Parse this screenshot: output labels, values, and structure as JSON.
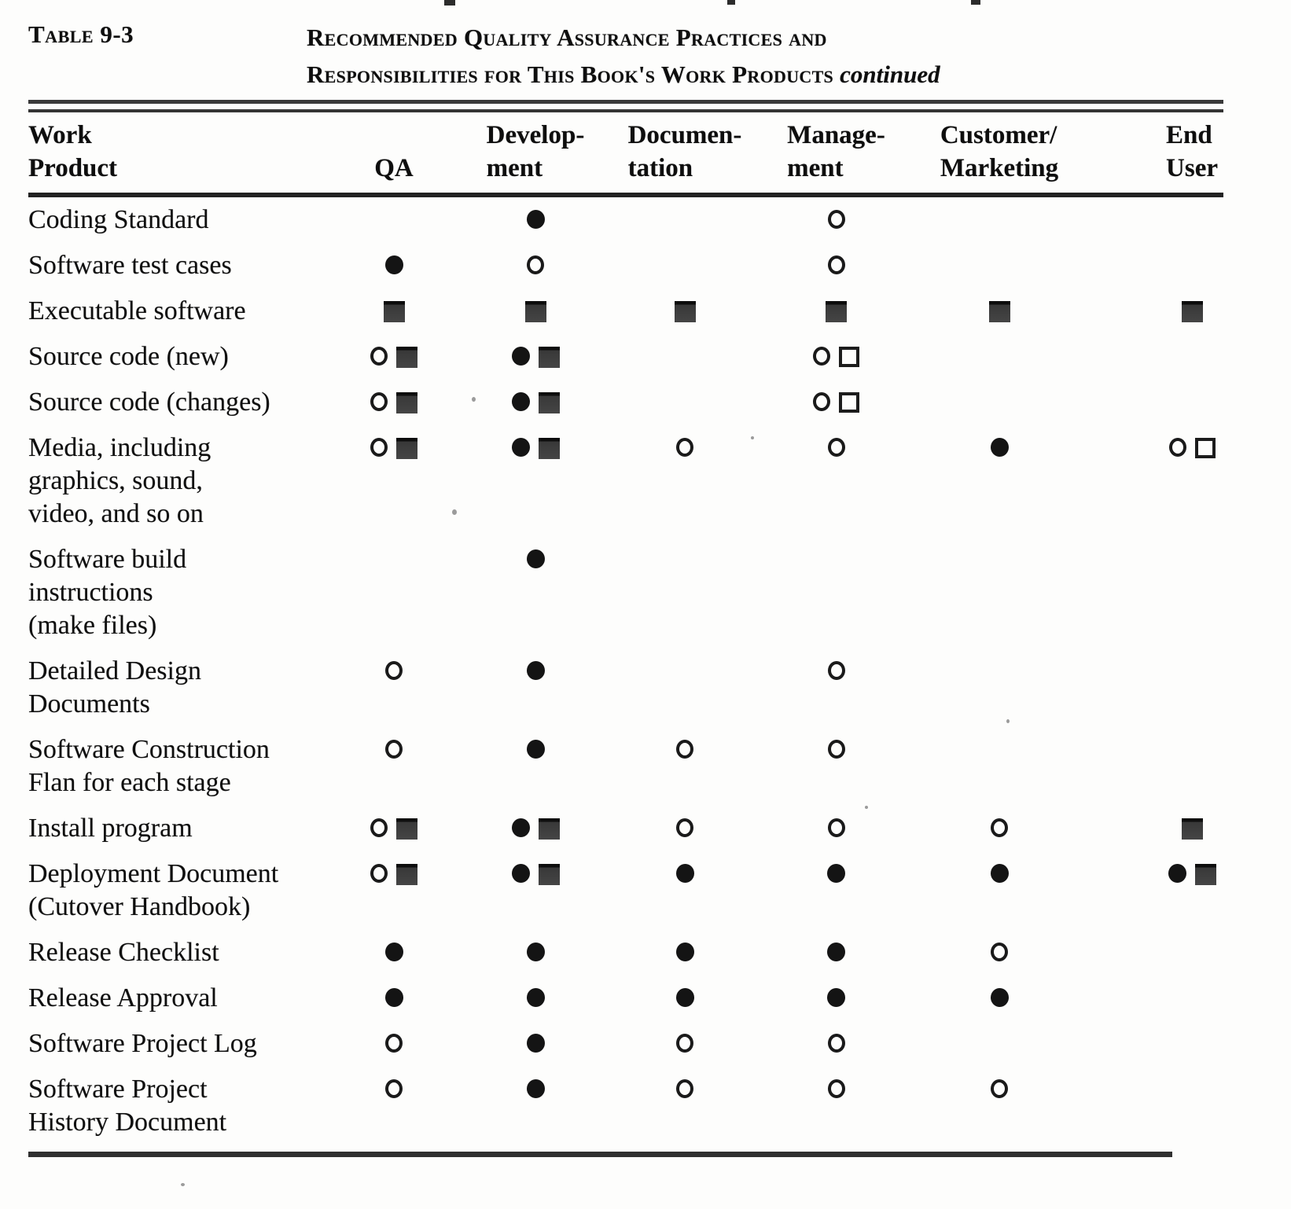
{
  "document": {
    "table_label": "Table 9-3",
    "title_line1": "Recommended Quality Assurance Practices and",
    "title_line2": "Responsibilities for This Book's Work Products",
    "title_suffix": "continued"
  },
  "table": {
    "columns": [
      {
        "id": "work-product",
        "lines": [
          "Work",
          "Product"
        ]
      },
      {
        "id": "qa",
        "lines": [
          "QA"
        ]
      },
      {
        "id": "development",
        "lines": [
          "Develop-",
          "ment"
        ]
      },
      {
        "id": "documentation",
        "lines": [
          "Documen-",
          "tation"
        ]
      },
      {
        "id": "management",
        "lines": [
          "Manage-",
          "ment"
        ]
      },
      {
        "id": "customer-marketing",
        "lines": [
          "Customer/",
          "Marketing"
        ]
      },
      {
        "id": "end-user",
        "lines": [
          "End",
          "User"
        ]
      }
    ],
    "symbol_legend": {
      "filled-circle": "solid dot",
      "open-circle": "open dot",
      "filled-square": "solid square",
      "open-square": "open square"
    },
    "rows": [
      {
        "product_lines": [
          "Coding Standard"
        ],
        "cells": {
          "qa": [],
          "development": [
            "filled-circle"
          ],
          "documentation": [],
          "management": [
            "open-circle"
          ],
          "customer-marketing": [],
          "end-user": []
        }
      },
      {
        "product_lines": [
          "Software test cases"
        ],
        "cells": {
          "qa": [
            "filled-circle"
          ],
          "development": [
            "open-circle"
          ],
          "documentation": [],
          "management": [
            "open-circle"
          ],
          "customer-marketing": [],
          "end-user": []
        }
      },
      {
        "product_lines": [
          "Executable software"
        ],
        "cells": {
          "qa": [
            "filled-square"
          ],
          "development": [
            "filled-square"
          ],
          "documentation": [
            "filled-square"
          ],
          "management": [
            "filled-square"
          ],
          "customer-marketing": [
            "filled-square"
          ],
          "end-user": [
            "filled-square"
          ]
        }
      },
      {
        "product_lines": [
          "Source code (new)"
        ],
        "cells": {
          "qa": [
            "open-circle",
            "filled-square"
          ],
          "development": [
            "filled-circle",
            "filled-square"
          ],
          "documentation": [],
          "management": [
            "open-circle",
            "open-square"
          ],
          "customer-marketing": [],
          "end-user": []
        }
      },
      {
        "product_lines": [
          "Source code (changes)"
        ],
        "cells": {
          "qa": [
            "open-circle",
            "filled-square"
          ],
          "development": [
            "filled-circle",
            "filled-square"
          ],
          "documentation": [],
          "management": [
            "open-circle",
            "open-square"
          ],
          "customer-marketing": [],
          "end-user": []
        }
      },
      {
        "product_lines": [
          "Media, including",
          "graphics, sound,",
          "video, and so on"
        ],
        "cells": {
          "qa": [
            "open-circle",
            "filled-square"
          ],
          "development": [
            "filled-circle",
            "filled-square"
          ],
          "documentation": [
            "open-circle"
          ],
          "management": [
            "open-circle"
          ],
          "customer-marketing": [
            "filled-circle"
          ],
          "end-user": [
            "open-circle",
            "open-square"
          ]
        }
      },
      {
        "product_lines": [
          "Software build",
          "instructions",
          "(make files)"
        ],
        "cells": {
          "qa": [],
          "development": [
            "filled-circle"
          ],
          "documentation": [],
          "management": [],
          "customer-marketing": [],
          "end-user": []
        }
      },
      {
        "product_lines": [
          "Detailed Design",
          "Documents"
        ],
        "cells": {
          "qa": [
            "open-circle"
          ],
          "development": [
            "filled-circle"
          ],
          "documentation": [],
          "management": [
            "open-circle"
          ],
          "customer-marketing": [],
          "end-user": []
        }
      },
      {
        "product_lines": [
          "Software Construction",
          "Flan for each stage"
        ],
        "cells": {
          "qa": [
            "open-circle"
          ],
          "development": [
            "filled-circle"
          ],
          "documentation": [
            "open-circle"
          ],
          "management": [
            "open-circle"
          ],
          "customer-marketing": [],
          "end-user": []
        }
      },
      {
        "product_lines": [
          "Install program"
        ],
        "cells": {
          "qa": [
            "open-circle",
            "filled-square"
          ],
          "development": [
            "filled-circle",
            "filled-square"
          ],
          "documentation": [
            "open-circle"
          ],
          "management": [
            "open-circle"
          ],
          "customer-marketing": [
            "open-circle"
          ],
          "end-user": [
            "filled-square"
          ]
        }
      },
      {
        "product_lines": [
          "Deployment Document",
          "(Cutover Handbook)"
        ],
        "cells": {
          "qa": [
            "open-circle",
            "filled-square"
          ],
          "development": [
            "filled-circle",
            "filled-square"
          ],
          "documentation": [
            "filled-circle"
          ],
          "management": [
            "filled-circle"
          ],
          "customer-marketing": [
            "filled-circle"
          ],
          "end-user": [
            "filled-circle",
            "filled-square"
          ]
        }
      },
      {
        "product_lines": [
          "Release Checklist"
        ],
        "cells": {
          "qa": [
            "filled-circle"
          ],
          "development": [
            "filled-circle"
          ],
          "documentation": [
            "filled-circle"
          ],
          "management": [
            "filled-circle"
          ],
          "customer-marketing": [
            "open-circle"
          ],
          "end-user": []
        }
      },
      {
        "product_lines": [
          "Release Approval"
        ],
        "cells": {
          "qa": [
            "filled-circle"
          ],
          "development": [
            "filled-circle"
          ],
          "documentation": [
            "filled-circle"
          ],
          "management": [
            "filled-circle"
          ],
          "customer-marketing": [
            "filled-circle"
          ],
          "end-user": []
        }
      },
      {
        "product_lines": [
          "Software Project Log"
        ],
        "cells": {
          "qa": [
            "open-circle"
          ],
          "development": [
            "filled-circle"
          ],
          "documentation": [
            "open-circle"
          ],
          "management": [
            "open-circle"
          ],
          "customer-marketing": [],
          "end-user": []
        }
      },
      {
        "product_lines": [
          "Software Project",
          "History Document"
        ],
        "cells": {
          "qa": [
            "open-circle"
          ],
          "development": [
            "filled-circle"
          ],
          "documentation": [
            "open-circle"
          ],
          "management": [
            "open-circle"
          ],
          "customer-marketing": [
            "open-circle"
          ],
          "end-user": []
        }
      }
    ]
  }
}
